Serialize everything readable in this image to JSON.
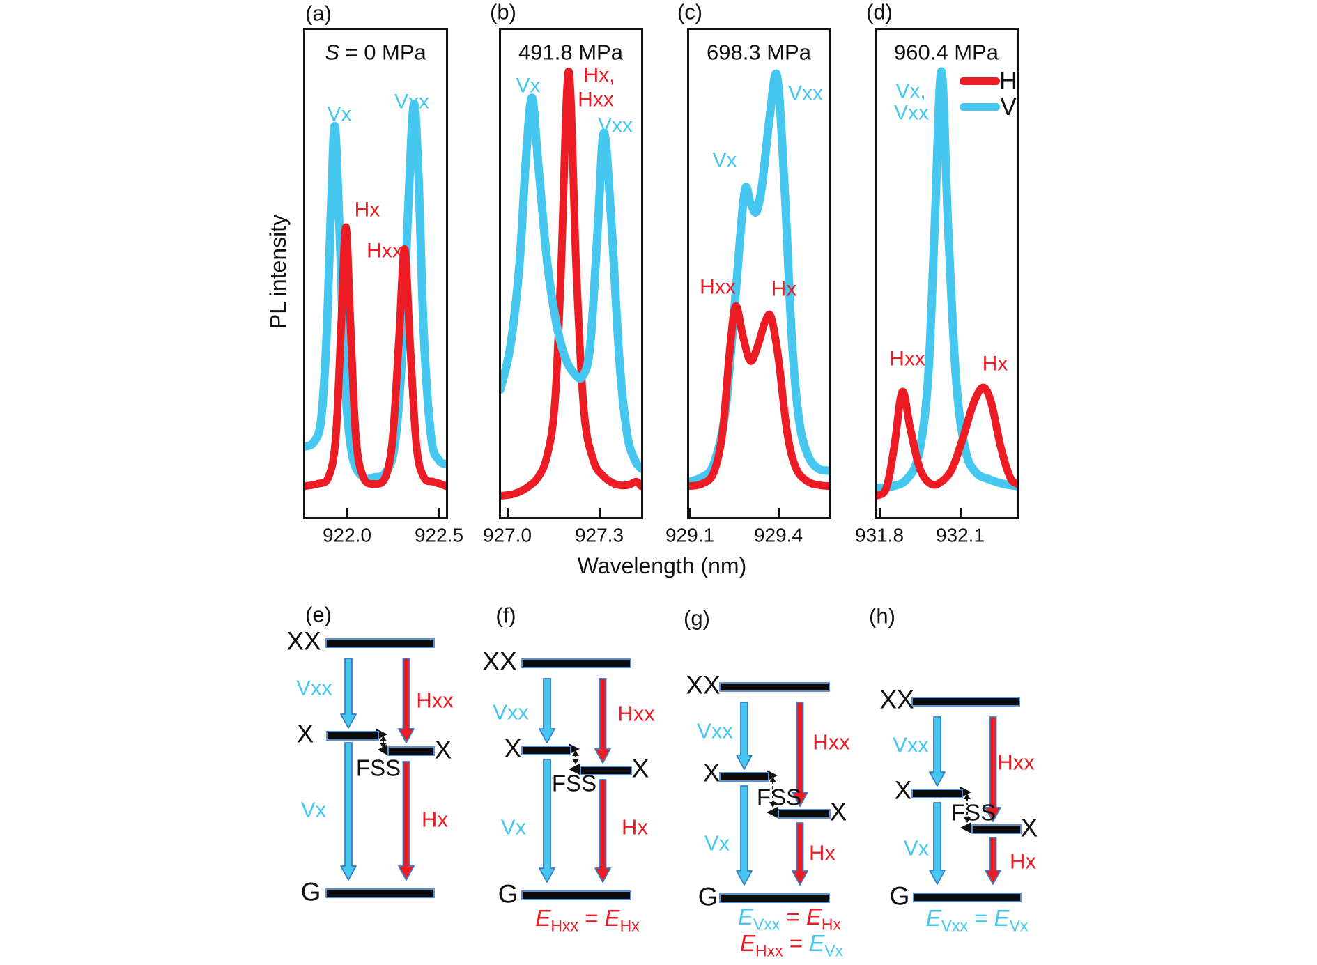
{
  "colors": {
    "h": "#EC1C24",
    "v": "#45C7F0",
    "text": "#111111",
    "arrow_outline": "#3a7dc2"
  },
  "axis": {
    "ylabel": "PL intensity",
    "xlabel": "Wavelength (nm)"
  },
  "legend": {
    "items": [
      {
        "label": "H",
        "color": "#EC1C24"
      },
      {
        "label": "V",
        "color": "#45C7F0"
      }
    ]
  },
  "panels": [
    {
      "letter": "(a)",
      "title_italic": "S",
      "title": " = 0 MPa",
      "ticks": [
        "922.0",
        "922.5"
      ],
      "labels": [
        {
          "text": "Vx"
        },
        {
          "text": "Vxx"
        },
        {
          "text": "Hx"
        },
        {
          "text": "Hxx"
        }
      ]
    },
    {
      "letter": "(b)",
      "title": "491.8 MPa",
      "ticks": [
        "927.0",
        "927.3"
      ],
      "labels": [
        {
          "text": "Vx"
        },
        {
          "text": "Hx,"
        },
        {
          "text": "Hxx"
        },
        {
          "text": "Vxx"
        }
      ]
    },
    {
      "letter": "(c)",
      "title": "698.3 MPa",
      "ticks": [
        "929.1",
        "929.4"
      ],
      "labels": [
        {
          "text": "Vx"
        },
        {
          "text": "Vxx"
        },
        {
          "text": "Hxx"
        },
        {
          "text": "Hx"
        }
      ]
    },
    {
      "letter": "(d)",
      "title": "960.4 MPa",
      "ticks": [
        "931.8",
        "932.1"
      ],
      "labels": [
        {
          "text": "Vx,"
        },
        {
          "text": "Vxx"
        },
        {
          "text": "Hxx"
        },
        {
          "text": "Hx"
        }
      ]
    }
  ],
  "diagrams": [
    {
      "letter": "(e)",
      "levels": {
        "xx": "XX",
        "x_left": "X",
        "x_right": "X",
        "g": "G"
      },
      "fss": "FSS",
      "transitions": {
        "vxx": "Vxx",
        "hxx": "Hxx",
        "vx": "Vx",
        "hx": "Hx"
      },
      "equations": []
    },
    {
      "letter": "(f)",
      "levels": {
        "xx": "XX",
        "x_left": "X",
        "x_right": "X",
        "g": "G"
      },
      "fss": "FSS",
      "transitions": {
        "vxx": "Vxx",
        "hxx": "Hxx",
        "vx": "Vx",
        "hx": "Hx"
      },
      "equations": [
        [
          {
            "b": "E",
            "s": "Hxx",
            "c": "h"
          },
          {
            "t": "=",
            "c": "h"
          },
          {
            "b": "E",
            "s": "Hx",
            "c": "h"
          }
        ]
      ]
    },
    {
      "letter": "(g)",
      "levels": {
        "xx": "XX",
        "x_left": "X",
        "x_right": "X",
        "g": "G"
      },
      "fss": "FSS",
      "transitions": {
        "vxx": "Vxx",
        "hxx": "Hxx",
        "vx": "Vx",
        "hx": "Hx"
      },
      "equations": [
        [
          {
            "b": "E",
            "s": "Vxx",
            "c": "v"
          },
          {
            "t": "=",
            "c": "h"
          },
          {
            "b": "E",
            "s": "Hx",
            "c": "h"
          }
        ],
        [
          {
            "b": "E",
            "s": "Hxx",
            "c": "h"
          },
          {
            "t": "=",
            "c": "h"
          },
          {
            "b": "E",
            "s": "Vx",
            "c": "v"
          }
        ]
      ]
    },
    {
      "letter": "(h)",
      "levels": {
        "xx": "XX",
        "x_left": "X",
        "x_right": "X",
        "g": "G"
      },
      "fss": "FSS",
      "transitions": {
        "vxx": "Vxx",
        "hxx": "Hxx",
        "vx": "Vx",
        "hx": "Hx"
      },
      "equations": [
        [
          {
            "b": "E",
            "s": "Vxx",
            "c": "v"
          },
          {
            "t": "=",
            "c": "v"
          },
          {
            "b": "E",
            "s": "Vx",
            "c": "v"
          }
        ]
      ]
    }
  ],
  "chart_data": [
    {
      "type": "line",
      "panel": "a",
      "title": "S = 0 MPa",
      "xlabel": "Wavelength (nm)",
      "ylabel": "PL intensity",
      "xlim": [
        921.78,
        922.55
      ],
      "x_ticks": [
        922.0,
        922.5
      ],
      "peak_annotations": [
        "Vx",
        "Vxx",
        "Hx",
        "Hxx"
      ],
      "series": [
        {
          "name": "V",
          "color": "#45C7F0",
          "x": [
            921.78,
            921.83,
            921.87,
            921.9,
            921.925,
            921.945,
            921.97,
            922.0,
            922.04,
            922.1,
            922.16,
            922.22,
            922.27,
            922.31,
            922.345,
            922.375,
            922.4,
            922.43,
            922.47,
            922.51,
            922.55
          ],
          "y": [
            0.1,
            0.11,
            0.16,
            0.35,
            0.65,
            0.83,
            0.6,
            0.25,
            0.08,
            0.03,
            0.03,
            0.04,
            0.1,
            0.3,
            0.65,
            0.88,
            0.72,
            0.35,
            0.12,
            0.07,
            0.06
          ]
        },
        {
          "name": "H",
          "color": "#EC1C24",
          "x": [
            921.78,
            921.85,
            921.91,
            921.95,
            921.98,
            922.005,
            922.03,
            922.06,
            922.1,
            922.16,
            922.22,
            922.26,
            922.295,
            922.325,
            922.355,
            922.39,
            922.43,
            922.48,
            922.52,
            922.55
          ],
          "y": [
            0.01,
            0.015,
            0.03,
            0.12,
            0.38,
            0.6,
            0.38,
            0.12,
            0.03,
            0.015,
            0.03,
            0.12,
            0.35,
            0.55,
            0.33,
            0.1,
            0.03,
            0.02,
            0.015,
            0.01
          ]
        }
      ]
    },
    {
      "type": "line",
      "panel": "b",
      "title": "491.8 MPa",
      "xlabel": "Wavelength (nm)",
      "ylabel": "PL intensity",
      "xlim": [
        926.977,
        927.436
      ],
      "x_ticks": [
        927.0,
        927.3
      ],
      "peak_annotations": [
        "Vx",
        "Hx",
        "Hxx",
        "Vxx"
      ],
      "series": [
        {
          "name": "V",
          "color": "#45C7F0",
          "x": [
            926.977,
            927.01,
            927.04,
            927.06,
            927.08,
            927.1,
            927.13,
            927.16,
            927.19,
            927.22,
            927.245,
            927.27,
            927.295,
            927.315,
            927.34,
            927.365,
            927.39,
            927.415,
            927.436
          ],
          "y": [
            0.23,
            0.33,
            0.52,
            0.75,
            0.895,
            0.75,
            0.52,
            0.38,
            0.3,
            0.265,
            0.26,
            0.33,
            0.6,
            0.815,
            0.6,
            0.3,
            0.13,
            0.07,
            0.05
          ]
        },
        {
          "name": "H",
          "color": "#EC1C24",
          "x": [
            926.977,
            927.02,
            927.06,
            927.1,
            927.13,
            927.155,
            927.175,
            927.2,
            927.225,
            927.25,
            927.28,
            927.31,
            927.35,
            927.39,
            927.42,
            927.436
          ],
          "y": [
            -0.012,
            -0.008,
            0.005,
            0.03,
            0.08,
            0.2,
            0.5,
            0.955,
            0.5,
            0.18,
            0.07,
            0.035,
            0.015,
            0.012,
            0.02,
            0.01
          ]
        }
      ]
    },
    {
      "type": "line",
      "panel": "c",
      "title": "698.3 MPa",
      "xlabel": "Wavelength (nm)",
      "ylabel": "PL intensity",
      "xlim": [
        929.095,
        929.572
      ],
      "x_ticks": [
        929.1,
        929.4
      ],
      "peak_annotations": [
        "Vx",
        "Vxx",
        "Hxx",
        "Hx"
      ],
      "series": [
        {
          "name": "V",
          "color": "#45C7F0",
          "x": [
            929.095,
            929.14,
            929.18,
            929.22,
            929.255,
            929.285,
            929.305,
            929.325,
            929.345,
            929.37,
            929.395,
            929.42,
            929.445,
            929.47,
            929.5,
            929.535,
            929.572
          ],
          "y": [
            0.02,
            0.03,
            0.06,
            0.18,
            0.45,
            0.68,
            0.655,
            0.635,
            0.7,
            0.85,
            0.945,
            0.7,
            0.35,
            0.16,
            0.08,
            0.05,
            0.045
          ]
        },
        {
          "name": "H",
          "color": "#EC1C24",
          "x": [
            929.095,
            929.14,
            929.18,
            929.21,
            929.235,
            929.255,
            929.28,
            929.305,
            929.33,
            929.355,
            929.375,
            929.4,
            929.43,
            929.46,
            929.5,
            929.54,
            929.572
          ],
          "y": [
            0.01,
            0.015,
            0.04,
            0.13,
            0.32,
            0.42,
            0.35,
            0.295,
            0.33,
            0.385,
            0.395,
            0.3,
            0.13,
            0.05,
            0.02,
            0.012,
            0.01
          ]
        }
      ]
    },
    {
      "type": "line",
      "panel": "d",
      "title": "960.4 MPa",
      "xlabel": "Wavelength (nm)",
      "ylabel": "PL intensity",
      "xlim": [
        931.787,
        932.312
      ],
      "x_ticks": [
        931.8,
        932.1
      ],
      "peak_annotations": [
        "Vx, Vxx",
        "Hxx",
        "Hx"
      ],
      "series": [
        {
          "name": "V",
          "color": "#45C7F0",
          "x": [
            931.787,
            931.85,
            931.9,
            931.945,
            931.98,
            932.005,
            932.03,
            932.055,
            932.085,
            932.12,
            932.16,
            932.21,
            932.26,
            932.312
          ],
          "y": [
            0.005,
            0.01,
            0.025,
            0.08,
            0.25,
            0.6,
            0.955,
            0.6,
            0.25,
            0.09,
            0.04,
            0.025,
            0.015,
            0.01
          ]
        },
        {
          "name": "H",
          "color": "#EC1C24",
          "x": [
            931.787,
            931.825,
            931.855,
            931.885,
            931.915,
            931.95,
            931.99,
            932.03,
            932.07,
            932.11,
            932.15,
            932.185,
            932.215,
            932.25,
            932.285,
            932.312
          ],
          "y": [
            -0.012,
            0.005,
            0.1,
            0.225,
            0.14,
            0.05,
            0.015,
            0.02,
            0.05,
            0.12,
            0.2,
            0.235,
            0.2,
            0.1,
            0.03,
            0.015
          ]
        }
      ]
    }
  ]
}
